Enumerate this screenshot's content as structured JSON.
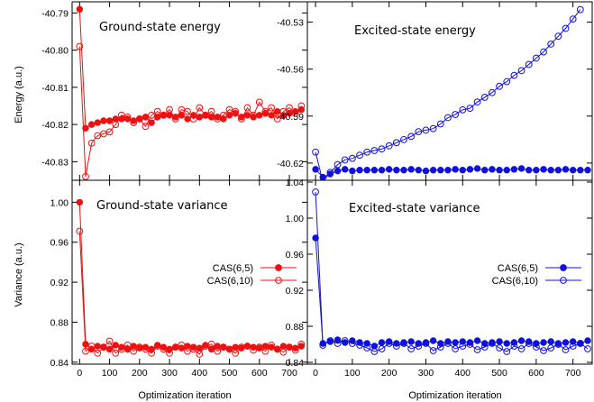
{
  "axis_labels": {
    "energy": "Energy (a.u.)",
    "variance": "Variance (a.u.)",
    "iteration": "Optimization iteration"
  },
  "legend": {
    "filled": "CAS(6,5)",
    "open": "CAS(6,10)"
  },
  "colors": {
    "ground": "#ee1111",
    "excited": "#1111dd"
  },
  "chart_data": [
    {
      "type": "line",
      "title": "Ground-state energy",
      "panel": "top-left",
      "ylabel": "Energy (a.u.)",
      "xlim": [
        -10,
        745
      ],
      "ylim": [
        -40.835,
        -40.787
      ],
      "yticks": [
        -40.79,
        -40.8,
        -40.81,
        -40.82,
        -40.83
      ],
      "ytick_labels": [
        "-40.79",
        "-40.80",
        "-40.81",
        "-40.82",
        "-40.83"
      ],
      "color": "#ee1111",
      "series": [
        {
          "name": "CAS(6,5)",
          "marker": "filled",
          "x": [
            0,
            20,
            40,
            60,
            80,
            100,
            120,
            140,
            160,
            180,
            200,
            220,
            240,
            260,
            280,
            300,
            320,
            340,
            360,
            380,
            400,
            420,
            440,
            460,
            480,
            500,
            520,
            540,
            560,
            580,
            600,
            620,
            640,
            660,
            680,
            700,
            720,
            740
          ],
          "y": [
            -40.789,
            -40.821,
            -40.82,
            -40.8195,
            -40.819,
            -40.819,
            -40.8185,
            -40.8185,
            -40.8185,
            -40.819,
            -40.8185,
            -40.818,
            -40.8195,
            -40.818,
            -40.8175,
            -40.8175,
            -40.818,
            -40.8175,
            -40.8185,
            -40.8175,
            -40.818,
            -40.8175,
            -40.818,
            -40.818,
            -40.8185,
            -40.8175,
            -40.817,
            -40.818,
            -40.8175,
            -40.818,
            -40.8175,
            -40.817,
            -40.8175,
            -40.8165,
            -40.8175,
            -40.817,
            -40.8165,
            -40.816
          ]
        },
        {
          "name": "CAS(6,10)",
          "marker": "open",
          "x": [
            0,
            20,
            40,
            60,
            80,
            100,
            120,
            140,
            160,
            180,
            200,
            220,
            240,
            260,
            280,
            300,
            320,
            340,
            360,
            380,
            400,
            420,
            440,
            460,
            480,
            500,
            520,
            540,
            560,
            580,
            600,
            620,
            640,
            660,
            680,
            700,
            720,
            740
          ],
          "y": [
            -40.799,
            -40.834,
            -40.825,
            -40.823,
            -40.8225,
            -40.822,
            -40.82,
            -40.8175,
            -40.818,
            -40.8195,
            -40.8185,
            -40.8205,
            -40.8175,
            -40.8165,
            -40.8175,
            -40.816,
            -40.8185,
            -40.816,
            -40.8165,
            -40.8185,
            -40.8155,
            -40.8175,
            -40.8165,
            -40.8185,
            -40.8175,
            -40.816,
            -40.8165,
            -40.8185,
            -40.8155,
            -40.8175,
            -40.814,
            -40.8165,
            -40.8155,
            -40.8185,
            -40.8165,
            -40.8155,
            -40.817,
            -40.815
          ]
        }
      ]
    },
    {
      "type": "line",
      "title": "Excited-state energy",
      "panel": "top-right",
      "xlim": [
        -10,
        740
      ],
      "ylim": [
        -40.631,
        -40.517
      ],
      "yticks": [
        -40.53,
        -40.56,
        -40.59,
        -40.62
      ],
      "ytick_labels": [
        "-40.53",
        "-40.56",
        "-40.59",
        "-40.62"
      ],
      "color": "#1111dd",
      "series": [
        {
          "name": "CAS(6,5)",
          "marker": "filled",
          "x": [
            0,
            20,
            40,
            60,
            80,
            100,
            120,
            140,
            160,
            180,
            200,
            220,
            240,
            260,
            280,
            300,
            320,
            340,
            360,
            380,
            400,
            420,
            440,
            460,
            480,
            500,
            520,
            540,
            560,
            580,
            600,
            620,
            640,
            660,
            680,
            700,
            720,
            740
          ],
          "y": [
            -40.624,
            -40.629,
            -40.627,
            -40.625,
            -40.624,
            -40.625,
            -40.6245,
            -40.6245,
            -40.6245,
            -40.6245,
            -40.624,
            -40.6245,
            -40.6245,
            -40.624,
            -40.6245,
            -40.625,
            -40.6245,
            -40.6245,
            -40.6245,
            -40.624,
            -40.6245,
            -40.624,
            -40.6235,
            -40.6245,
            -40.624,
            -40.6245,
            -40.6245,
            -40.624,
            -40.6235,
            -40.6245,
            -40.6245,
            -40.624,
            -40.6245,
            -40.6245,
            -40.624,
            -40.6245,
            -40.6245,
            -40.6245
          ]
        },
        {
          "name": "CAS(6,10)",
          "marker": "open",
          "x": [
            0,
            20,
            40,
            60,
            80,
            100,
            120,
            140,
            160,
            180,
            200,
            220,
            240,
            260,
            280,
            300,
            320,
            340,
            360,
            380,
            400,
            420,
            440,
            460,
            480,
            500,
            520,
            540,
            560,
            580,
            600,
            620,
            640,
            660,
            680,
            700,
            720
          ],
          "y": [
            -40.613,
            -40.632,
            -40.626,
            -40.621,
            -40.618,
            -40.617,
            -40.615,
            -40.613,
            -40.612,
            -40.611,
            -40.609,
            -40.607,
            -40.605,
            -40.603,
            -40.6,
            -40.599,
            -40.598,
            -40.595,
            -40.591,
            -40.589,
            -40.586,
            -40.585,
            -40.581,
            -40.578,
            -40.575,
            -40.571,
            -40.568,
            -40.564,
            -40.561,
            -40.557,
            -40.553,
            -40.549,
            -40.544,
            -40.539,
            -40.534,
            -40.528,
            -40.522
          ]
        }
      ]
    },
    {
      "type": "line",
      "title": "Ground-state variance",
      "panel": "bottom-left",
      "ylabel": "Variance (a.u.)",
      "xlabel": "Optimization iteration",
      "xlim": [
        -10,
        745
      ],
      "ylim": [
        0.838,
        1.022
      ],
      "yticks": [
        1.0,
        0.96,
        0.92,
        0.88,
        0.84
      ],
      "ytick_labels": [
        "1.00",
        "0.96",
        "0.92",
        "0.88",
        "0.84"
      ],
      "xticks": [
        0,
        100,
        200,
        300,
        400,
        500,
        600,
        700
      ],
      "xtick_labels": [
        "0",
        "100",
        "200",
        "300",
        "400",
        "500",
        "600",
        "700"
      ],
      "legend_position": "right",
      "color": "#ee1111",
      "series": [
        {
          "name": "CAS(6,5)",
          "marker": "filled",
          "x": [
            0,
            20,
            40,
            60,
            80,
            100,
            120,
            140,
            160,
            180,
            200,
            220,
            240,
            260,
            280,
            300,
            320,
            340,
            360,
            380,
            400,
            420,
            440,
            460,
            480,
            500,
            520,
            540,
            560,
            580,
            600,
            620,
            640,
            660,
            680,
            700,
            720,
            740
          ],
          "y": [
            1.0,
            0.858,
            0.853,
            0.856,
            0.855,
            0.853,
            0.857,
            0.855,
            0.853,
            0.856,
            0.854,
            0.855,
            0.853,
            0.857,
            0.855,
            0.853,
            0.855,
            0.854,
            0.856,
            0.855,
            0.854,
            0.857,
            0.853,
            0.856,
            0.855,
            0.853,
            0.855,
            0.854,
            0.856,
            0.855,
            0.854,
            0.856,
            0.855,
            0.853,
            0.856,
            0.855,
            0.854,
            0.856
          ]
        },
        {
          "name": "CAS(6,10)",
          "marker": "open",
          "x": [
            0,
            20,
            40,
            60,
            80,
            100,
            120,
            140,
            160,
            180,
            200,
            220,
            240,
            260,
            280,
            300,
            320,
            340,
            360,
            380,
            400,
            420,
            440,
            460,
            480,
            500,
            520,
            540,
            560,
            580,
            600,
            620,
            640,
            660,
            680,
            700,
            720,
            740
          ],
          "y": [
            0.971,
            0.851,
            0.856,
            0.849,
            0.855,
            0.861,
            0.849,
            0.853,
            0.857,
            0.851,
            0.855,
            0.853,
            0.849,
            0.856,
            0.853,
            0.849,
            0.855,
            0.857,
            0.851,
            0.853,
            0.848,
            0.856,
            0.858,
            0.851,
            0.855,
            0.853,
            0.849,
            0.855,
            0.856,
            0.852,
            0.855,
            0.851,
            0.857,
            0.853,
            0.85,
            0.855,
            0.852,
            0.858
          ]
        }
      ]
    },
    {
      "type": "line",
      "title": "Excited-state variance",
      "panel": "bottom-right",
      "xlabel": "Optimization iteration",
      "xlim": [
        -10,
        740
      ],
      "ylim": [
        0.838,
        1.042
      ],
      "yticks": [
        1.04,
        1.0,
        0.96,
        0.92,
        0.88,
        0.84
      ],
      "ytick_labels": [
        "1.04",
        "1.00",
        "0.96",
        "0.92",
        "0.88",
        "0.84"
      ],
      "xticks": [
        0,
        100,
        200,
        300,
        400,
        500,
        600,
        700
      ],
      "xtick_labels": [
        "0",
        "100",
        "200",
        "300",
        "400",
        "500",
        "600",
        "700"
      ],
      "legend_position": "right",
      "color": "#1111dd",
      "series": [
        {
          "name": "CAS(6,5)",
          "marker": "filled",
          "x": [
            0,
            20,
            40,
            60,
            80,
            100,
            120,
            140,
            160,
            180,
            200,
            220,
            240,
            260,
            280,
            300,
            320,
            340,
            360,
            380,
            400,
            420,
            440,
            460,
            480,
            500,
            520,
            540,
            560,
            580,
            600,
            620,
            640,
            660,
            680,
            700,
            720,
            740
          ],
          "y": [
            0.978,
            0.861,
            0.863,
            0.865,
            0.862,
            0.864,
            0.862,
            0.861,
            0.858,
            0.862,
            0.863,
            0.861,
            0.862,
            0.863,
            0.861,
            0.862,
            0.864,
            0.861,
            0.863,
            0.862,
            0.863,
            0.862,
            0.864,
            0.861,
            0.862,
            0.863,
            0.861,
            0.862,
            0.864,
            0.863,
            0.861,
            0.862,
            0.863,
            0.861,
            0.862,
            0.863,
            0.861,
            0.864
          ]
        },
        {
          "name": "CAS(6,10)",
          "marker": "open",
          "x": [
            0,
            20,
            40,
            60,
            80,
            100,
            120,
            140,
            160,
            180,
            200,
            220,
            240,
            260,
            280,
            300,
            320,
            340,
            360,
            380,
            400,
            420,
            440,
            460,
            480,
            500,
            520,
            540,
            560,
            580,
            600,
            620,
            640,
            660,
            680,
            700,
            720,
            740
          ],
          "y": [
            1.029,
            0.859,
            0.864,
            0.861,
            0.864,
            0.861,
            0.859,
            0.856,
            0.852,
            0.855,
            0.861,
            0.858,
            0.861,
            0.855,
            0.858,
            0.861,
            0.853,
            0.857,
            0.861,
            0.855,
            0.858,
            0.86,
            0.854,
            0.857,
            0.861,
            0.856,
            0.852,
            0.858,
            0.855,
            0.861,
            0.857,
            0.853,
            0.856,
            0.86,
            0.854,
            0.858,
            0.861,
            0.855
          ]
        }
      ]
    }
  ]
}
